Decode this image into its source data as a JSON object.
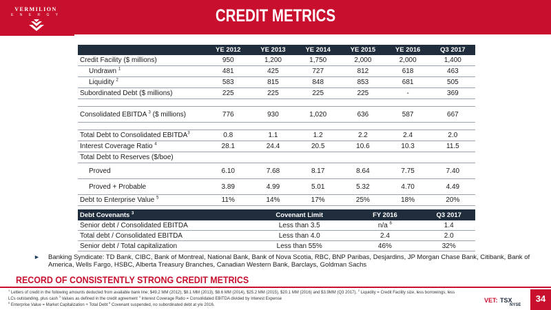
{
  "logo": {
    "name": "VERMILION",
    "sub": "E N E R G Y"
  },
  "title": "CREDIT METRICS",
  "metrics": {
    "columns": [
      "YE 2012",
      "YE 2013",
      "YE 2014",
      "YE 2015",
      "YE 2016",
      "Q3 2017"
    ],
    "rows": {
      "credit_facility": {
        "label": "Credit Facility ($ millions)",
        "values": [
          "950",
          "1,200",
          "1,750",
          "2,000",
          "2,000",
          "1,400"
        ]
      },
      "undrawn": {
        "label": "Undrawn",
        "sup": "1",
        "values": [
          "481",
          "425",
          "727",
          "812",
          "618",
          "463"
        ]
      },
      "liquidity": {
        "label": "Liquidity",
        "sup": "2",
        "values": [
          "583",
          "815",
          "848",
          "853",
          "681",
          "505"
        ]
      },
      "subordinated": {
        "label": "Subordinated Debt ($ millions)",
        "values": [
          "225",
          "225",
          "225",
          "225",
          "-",
          "369"
        ]
      },
      "ebitda": {
        "label": "Consolidated EBITDA",
        "sup": "3",
        "label_after": "($ millions)",
        "values": [
          "776",
          "930",
          "1,020",
          "636",
          "587",
          "667"
        ]
      },
      "debt_to_ebitda": {
        "label": "Total Debt to Consolidated EBITDA",
        "sup": "3",
        "values": [
          "0.8",
          "1.1",
          "1.2",
          "2.2",
          "2.4",
          "2.0"
        ]
      },
      "interest_coverage": {
        "label": "Interest Coverage Ratio",
        "sup": "4",
        "values": [
          "28.1",
          "24.4",
          "20.5",
          "10.6",
          "10.3",
          "11.5"
        ]
      },
      "debt_to_reserves": {
        "label": "Total Debt to Reserves ($/boe)"
      },
      "proved": {
        "label": "Proved",
        "values": [
          "6.10",
          "7.68",
          "8.17",
          "8.64",
          "7.75",
          "7.40"
        ]
      },
      "proved_probable": {
        "label": "Proved + Probable",
        "values": [
          "3.89",
          "4.99",
          "5.01",
          "5.32",
          "4.70",
          "4.49"
        ]
      },
      "debt_to_ev": {
        "label": "Debt to Enterprise Value",
        "sup": "5",
        "values": [
          "11%",
          "14%",
          "17%",
          "25%",
          "18%",
          "20%"
        ]
      }
    }
  },
  "covenants": {
    "header": {
      "label": "Debt Covenants",
      "sup": "3",
      "limit": "Covenant Limit",
      "fy": "FY 2016",
      "q3": "Q3 2017"
    },
    "rows": [
      {
        "label": "Senior debt / Consolidated EBITDA",
        "limit": "Less than 3.5",
        "fy": "n/a",
        "fy_sup": "6",
        "q3": "1.4"
      },
      {
        "label": "Total debt / Consolidated EBITDA",
        "limit": "Less than 4.0",
        "fy": "2.4",
        "fy_sup": "",
        "q3": "2.0"
      },
      {
        "label": "Senior debt / Total capitalization",
        "limit": "Less than 55%",
        "fy": "46%",
        "fy_sup": "",
        "q3": "32%"
      }
    ]
  },
  "bullet": {
    "arrow": "►",
    "text": "Banking Syndicate: TD Bank, CIBC, Bank of Montreal, National Bank, Bank of Nova Scotia, RBC, BNP Paribas, Desjardins, JP Morgan Chase Bank, Citibank, Bank of America, Wells Fargo, HSBC, Alberta Treasury Branches, Canadian Western Bank, Barclays, Goldman Sachs"
  },
  "record": "RECORD OF CONSISTENTLY STRONG CREDIT METRICS",
  "footnotes": {
    "n1": "1",
    "t1": " Letters of credit in the following amounts deducted from available bank line; $49.2 MM (2012), $8.1 MM (2013), $8.6 MM (2014), $25.2 MM (2015), $20.1 MM (2016) and $3.9MM (Q3 2017).  ",
    "n2": "2",
    "t2": " Liquidity = Credit Facility size, less borrowings, less LCs outstanding, plus cash ",
    "n3": "3",
    "t3": " Values as defined in the credit agreement  ",
    "n4": "4",
    "t4": " Interest Coverage Ratio = Consolidated EBITDA divided by Interest Expense",
    "n5": "5",
    "t5": " Enterprise Value = Market Capitalization + Total Debt  ",
    "n6": "6",
    "t6": " Covenant suspended, no subordinated debt at y/e 2016."
  },
  "ticker": {
    "vet": "VET:",
    "tsx": "TSX",
    "nyse": "NYSE"
  },
  "page_number": "34",
  "colors": {
    "brand_red": "#c8102e",
    "header_navy": "#1f2d3d"
  }
}
